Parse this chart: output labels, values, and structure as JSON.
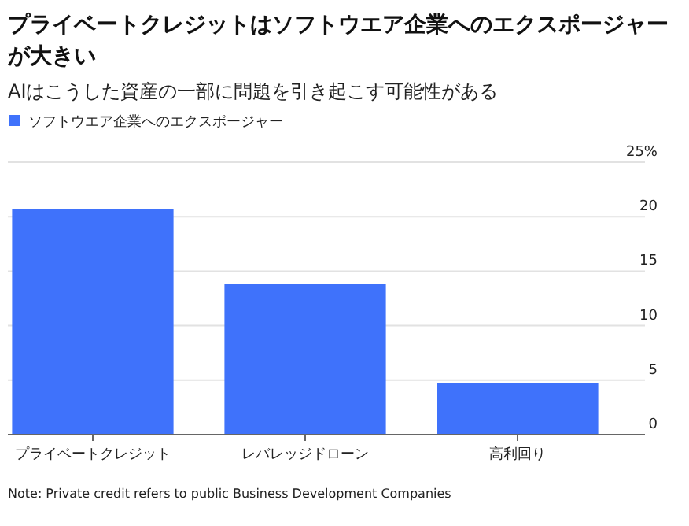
{
  "chart_data": {
    "type": "bar",
    "title": "プライベートクレジットはソフトウエア企業へのエクスポージャーが大きい",
    "subtitle": "AIはこうした資産の一部に問題を引き起こす可能性がある",
    "categories": [
      "プライベートクレジット",
      "レバレッジドローン",
      "高利回り"
    ],
    "series": [
      {
        "name": "ソフトウエア企業へのエクスポージャー",
        "color": "#3f72fb",
        "values": [
          20.7,
          13.8,
          4.7
        ]
      }
    ],
    "ylim": [
      0,
      25
    ],
    "yticks": [
      0,
      5,
      10,
      15,
      20,
      {
        "value": 25,
        "label": "25%"
      }
    ],
    "grid": "y",
    "legend": "top left",
    "annotations": [
      "Note: Private credit refers to public Business Development Companies"
    ]
  }
}
